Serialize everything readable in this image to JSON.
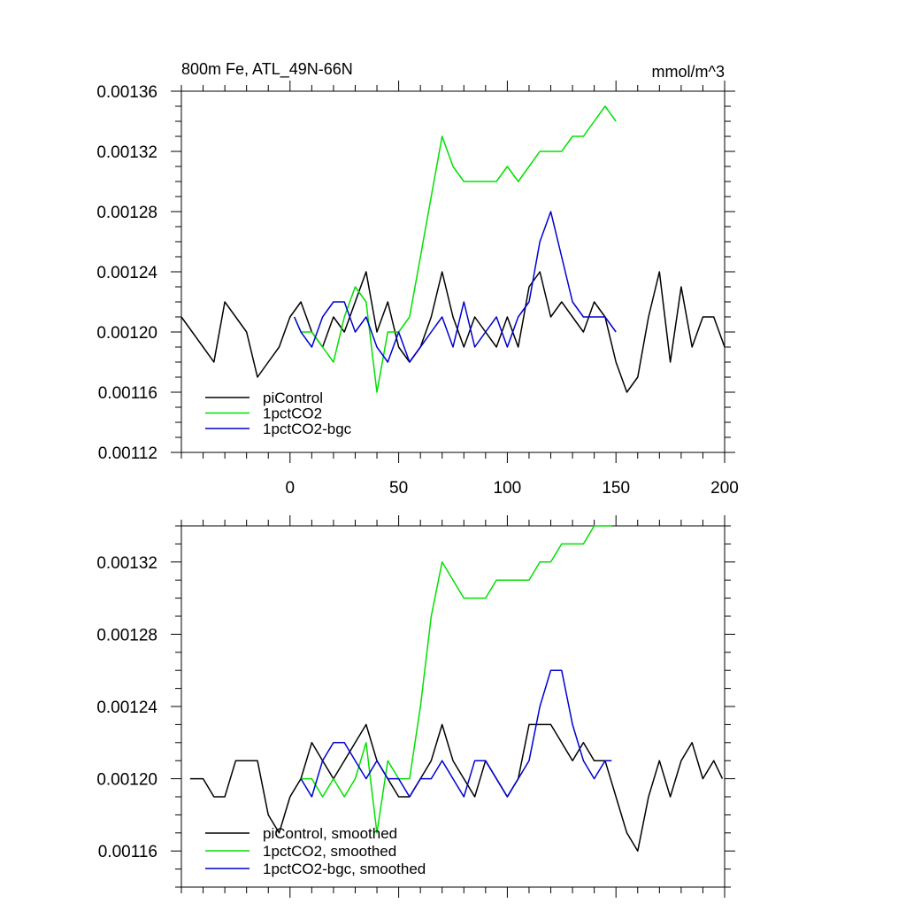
{
  "chart_data": [
    {
      "type": "line",
      "title": "800m Fe, ATL_49N-66N",
      "units": "mmol/m^3",
      "xlim": [
        -50,
        200
      ],
      "ylim": [
        0.00112,
        0.00136
      ],
      "x_ticks": [
        0,
        50,
        100,
        150,
        200
      ],
      "x_tick_labels": [
        "0",
        "50",
        "100",
        "150",
        "200"
      ],
      "y_ticks": [
        0.00112,
        0.00116,
        0.0012,
        0.00124,
        0.00128,
        0.00132,
        0.00136
      ],
      "y_tick_labels": [
        "0.00112",
        "0.00116",
        "0.00120",
        "0.00124",
        "0.00128",
        "0.00132",
        "0.00136"
      ],
      "legend_position": "bottom-left",
      "series": [
        {
          "name": "piControl",
          "color": "#000000",
          "x": [
            -50,
            -45,
            -40,
            -35,
            -30,
            -25,
            -20,
            -15,
            -10,
            -5,
            0,
            5,
            10,
            15,
            20,
            25,
            30,
            35,
            40,
            45,
            50,
            55,
            60,
            65,
            70,
            75,
            80,
            85,
            90,
            95,
            100,
            105,
            110,
            115,
            120,
            125,
            130,
            135,
            140,
            145,
            150,
            155,
            160,
            165,
            170,
            175,
            180,
            185,
            190,
            195,
            200
          ],
          "y": [
            0.00121,
            0.0012,
            0.00119,
            0.00118,
            0.00122,
            0.00121,
            0.0012,
            0.00117,
            0.00118,
            0.00119,
            0.00121,
            0.00122,
            0.0012,
            0.00119,
            0.00121,
            0.0012,
            0.00122,
            0.00124,
            0.0012,
            0.00122,
            0.00119,
            0.00118,
            0.00119,
            0.00121,
            0.00124,
            0.00121,
            0.00119,
            0.00121,
            0.0012,
            0.00119,
            0.00121,
            0.00119,
            0.00123,
            0.00124,
            0.00121,
            0.00122,
            0.00121,
            0.0012,
            0.00122,
            0.00121,
            0.00118,
            0.00116,
            0.00117,
            0.00121,
            0.00124,
            0.00118,
            0.00123,
            0.00119,
            0.00121,
            0.00121,
            0.00119
          ]
        },
        {
          "name": "1pctCO2",
          "color": "#00e000",
          "x": [
            2,
            5,
            10,
            15,
            20,
            25,
            30,
            35,
            40,
            45,
            50,
            55,
            60,
            65,
            70,
            75,
            80,
            85,
            90,
            95,
            100,
            105,
            110,
            115,
            120,
            125,
            130,
            135,
            140,
            145,
            150
          ],
          "y": [
            0.00121,
            0.0012,
            0.0012,
            0.00119,
            0.00118,
            0.00121,
            0.00123,
            0.00122,
            0.00116,
            0.0012,
            0.0012,
            0.00121,
            0.00125,
            0.00129,
            0.00133,
            0.00131,
            0.0013,
            0.0013,
            0.0013,
            0.0013,
            0.00131,
            0.0013,
            0.00131,
            0.00132,
            0.00132,
            0.00132,
            0.00133,
            0.00133,
            0.00134,
            0.00135,
            0.00134
          ]
        },
        {
          "name": "1pctCO2-bgc",
          "color": "#0000d0",
          "x": [
            2,
            5,
            10,
            15,
            20,
            25,
            30,
            35,
            40,
            45,
            50,
            55,
            60,
            65,
            70,
            75,
            80,
            85,
            90,
            95,
            100,
            105,
            110,
            115,
            120,
            125,
            130,
            135,
            140,
            145,
            150
          ],
          "y": [
            0.00121,
            0.0012,
            0.00119,
            0.00121,
            0.00122,
            0.00122,
            0.0012,
            0.00121,
            0.00119,
            0.00118,
            0.0012,
            0.00118,
            0.00119,
            0.0012,
            0.00121,
            0.00119,
            0.00122,
            0.00119,
            0.0012,
            0.00121,
            0.00119,
            0.00121,
            0.00122,
            0.00126,
            0.00128,
            0.00125,
            0.00122,
            0.00121,
            0.00121,
            0.00121,
            0.0012
          ]
        }
      ]
    },
    {
      "type": "line",
      "xlim": [
        -50,
        200
      ],
      "ylim": [
        0.00114,
        0.00134
      ],
      "x_ticks": [
        0,
        50,
        100,
        150,
        200
      ],
      "y_ticks": [
        0.00116,
        0.0012,
        0.00124,
        0.00128,
        0.00132
      ],
      "y_tick_labels": [
        "0.00116",
        "0.00120",
        "0.00124",
        "0.00128",
        "0.00132"
      ],
      "legend_position": "bottom-left",
      "series": [
        {
          "name": "piControl, smoothed",
          "color": "#000000",
          "x": [
            -46,
            -40,
            -35,
            -30,
            -25,
            -20,
            -15,
            -10,
            -5,
            0,
            5,
            10,
            15,
            20,
            25,
            30,
            35,
            40,
            45,
            50,
            55,
            60,
            65,
            70,
            75,
            80,
            85,
            90,
            95,
            100,
            105,
            110,
            115,
            120,
            125,
            130,
            135,
            140,
            145,
            150,
            155,
            160,
            165,
            170,
            175,
            180,
            185,
            190,
            195,
            199
          ],
          "y": [
            0.0012,
            0.0012,
            0.00119,
            0.00119,
            0.00121,
            0.00121,
            0.00121,
            0.00118,
            0.00117,
            0.00119,
            0.0012,
            0.00122,
            0.00121,
            0.0012,
            0.00121,
            0.00122,
            0.00123,
            0.00121,
            0.0012,
            0.00119,
            0.00119,
            0.0012,
            0.00121,
            0.00123,
            0.00121,
            0.0012,
            0.00119,
            0.00121,
            0.0012,
            0.00119,
            0.0012,
            0.00123,
            0.00123,
            0.00123,
            0.00122,
            0.00121,
            0.00122,
            0.00121,
            0.00121,
            0.00119,
            0.00117,
            0.00116,
            0.00119,
            0.00121,
            0.00119,
            0.00121,
            0.00122,
            0.0012,
            0.00121,
            0.0012
          ]
        },
        {
          "name": "1pctCO2, smoothed",
          "color": "#00e000",
          "x": [
            5,
            10,
            15,
            20,
            25,
            30,
            35,
            40,
            45,
            50,
            55,
            60,
            65,
            70,
            75,
            80,
            85,
            90,
            95,
            100,
            105,
            110,
            115,
            120,
            125,
            130,
            135,
            140,
            145,
            148
          ],
          "y": [
            0.0012,
            0.0012,
            0.00119,
            0.0012,
            0.00119,
            0.0012,
            0.00122,
            0.00117,
            0.00121,
            0.0012,
            0.0012,
            0.00124,
            0.00129,
            0.00132,
            0.00131,
            0.0013,
            0.0013,
            0.0013,
            0.00131,
            0.00131,
            0.00131,
            0.00131,
            0.00132,
            0.00132,
            0.00133,
            0.00133,
            0.00133,
            0.00134,
            0.00134,
            0.00134
          ]
        },
        {
          "name": "1pctCO2-bgc, smoothed",
          "color": "#0000d0",
          "x": [
            5,
            10,
            15,
            20,
            25,
            30,
            35,
            40,
            45,
            50,
            55,
            60,
            65,
            70,
            75,
            80,
            85,
            90,
            95,
            100,
            105,
            110,
            115,
            120,
            125,
            130,
            135,
            140,
            145,
            148
          ],
          "y": [
            0.0012,
            0.00119,
            0.00121,
            0.00122,
            0.00122,
            0.00121,
            0.0012,
            0.00121,
            0.0012,
            0.0012,
            0.00119,
            0.0012,
            0.0012,
            0.00121,
            0.0012,
            0.00119,
            0.00121,
            0.00121,
            0.0012,
            0.00119,
            0.0012,
            0.00121,
            0.00124,
            0.00126,
            0.00126,
            0.00123,
            0.00121,
            0.0012,
            0.00121,
            0.00121
          ]
        }
      ]
    }
  ]
}
